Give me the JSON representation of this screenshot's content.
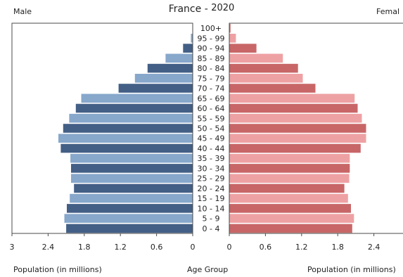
{
  "chart_data": {
    "type": "bar",
    "subtype": "population-pyramid",
    "title": "France -",
    "year": "2020",
    "left_header": "Male",
    "right_header": "Femal",
    "xlabel_left": "Population (in millions)",
    "xlabel_center": "Age Group",
    "xlabel_right": "Population (in millions)",
    "x_ticks_left": [
      "3",
      "2.4",
      "1.8",
      "1.2",
      "0.6",
      "0"
    ],
    "x_ticks_right": [
      "0",
      "0.6",
      "1.2",
      "1.8",
      "2.4"
    ],
    "xlim": [
      0,
      3
    ],
    "categories": [
      "100+",
      "95 - 99",
      "90 - 94",
      "85 - 89",
      "80 - 84",
      "75 - 79",
      "70 - 74",
      "65 - 69",
      "60 - 64",
      "55 - 59",
      "50 - 54",
      "45 - 49",
      "40 - 44",
      "35 - 39",
      "30 - 34",
      "25 - 29",
      "20 - 24",
      "15 - 19",
      "10 - 14",
      "5 - 9",
      "0 - 4"
    ],
    "series": [
      {
        "name": "Male",
        "values": [
          0.005,
          0.03,
          0.16,
          0.45,
          0.75,
          0.96,
          1.23,
          1.85,
          1.94,
          2.05,
          2.15,
          2.23,
          2.19,
          2.03,
          2.02,
          2.02,
          1.97,
          2.04,
          2.09,
          2.13,
          2.1
        ]
      },
      {
        "name": "Female",
        "values": [
          0.02,
          0.11,
          0.45,
          0.89,
          1.14,
          1.22,
          1.43,
          2.08,
          2.13,
          2.2,
          2.27,
          2.27,
          2.18,
          2.0,
          2.0,
          1.99,
          1.91,
          1.97,
          2.02,
          2.07,
          2.04
        ]
      }
    ],
    "colors": {
      "male_dark": "#435f86",
      "male_light": "#87a7cb",
      "female_dark": "#c86667",
      "female_light": "#eea1a3",
      "frame": "#4a4a4a"
    },
    "grid": false
  }
}
